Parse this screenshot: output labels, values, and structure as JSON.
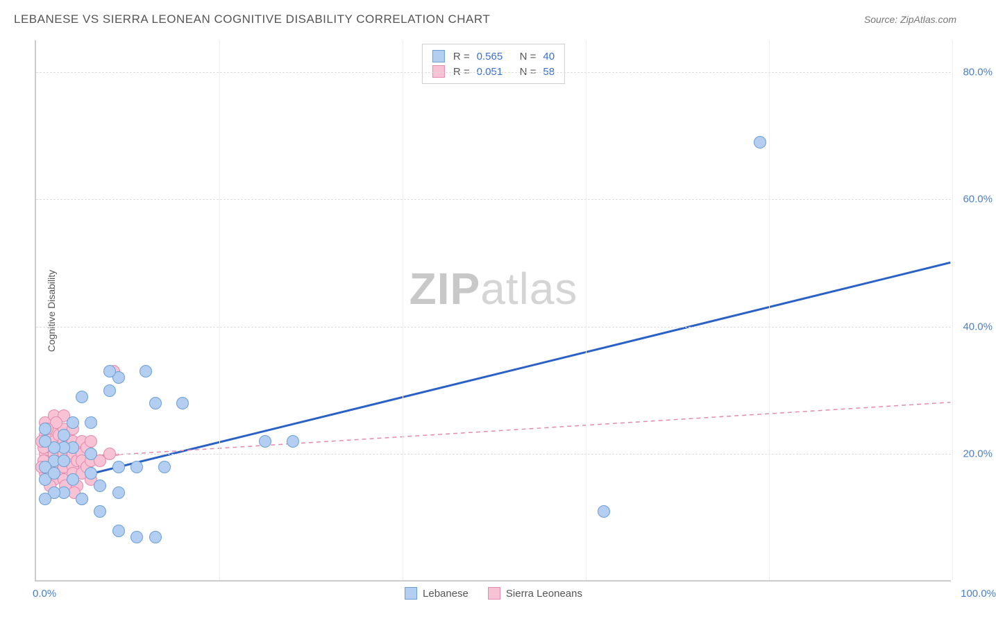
{
  "header": {
    "title": "LEBANESE VS SIERRA LEONEAN COGNITIVE DISABILITY CORRELATION CHART",
    "source_label": "Source: ",
    "source_name": "ZipAtlas.com"
  },
  "chart": {
    "type": "scatter",
    "ylabel": "Cognitive Disability",
    "xlim": [
      0,
      100
    ],
    "ylim": [
      0,
      85
    ],
    "yticks": [
      20,
      40,
      60,
      80
    ],
    "ytick_labels": [
      "20.0%",
      "40.0%",
      "60.0%",
      "80.0%"
    ],
    "xtick_labels": {
      "left": "0.0%",
      "right": "100.0%"
    },
    "grid_color": "#dddddd",
    "axis_color": "#cccccc",
    "background_color": "#ffffff",
    "xgrid_positions": [
      20,
      40,
      60,
      80,
      100
    ],
    "watermark": {
      "zip": "ZIP",
      "atlas": "atlas"
    },
    "series": [
      {
        "name": "Lebanese",
        "fill_color": "#b3cef0",
        "stroke_color": "#6a9fd4",
        "marker_radius": 9,
        "trend": {
          "x1": 1,
          "y1": 15,
          "x2": 100,
          "y2": 50,
          "color": "#2a61c7",
          "width": 3,
          "dash": "none",
          "solid_until_x": 100
        },
        "corr": {
          "r": "0.565",
          "n": "40"
        },
        "points": [
          [
            79,
            69
          ],
          [
            62,
            11
          ],
          [
            28,
            22
          ],
          [
            25,
            22
          ],
          [
            16,
            28
          ],
          [
            13,
            28
          ],
          [
            9,
            32
          ],
          [
            8,
            33
          ],
          [
            12,
            33
          ],
          [
            14,
            18
          ],
          [
            11,
            18
          ],
          [
            9,
            18
          ],
          [
            6,
            25
          ],
          [
            4,
            25
          ],
          [
            4,
            21
          ],
          [
            3,
            21
          ],
          [
            2,
            21
          ],
          [
            2,
            19
          ],
          [
            3,
            19
          ],
          [
            6,
            17
          ],
          [
            7,
            15
          ],
          [
            3,
            14
          ],
          [
            2,
            14
          ],
          [
            5,
            13
          ],
          [
            9,
            14
          ],
          [
            1,
            16
          ],
          [
            1,
            18
          ],
          [
            1,
            22
          ],
          [
            1,
            24
          ],
          [
            1,
            13
          ],
          [
            8,
            30
          ],
          [
            6,
            20
          ],
          [
            3,
            23
          ],
          [
            2,
            17
          ],
          [
            4,
            16
          ],
          [
            5,
            29
          ],
          [
            9,
            8
          ],
          [
            11,
            7
          ],
          [
            13,
            7
          ],
          [
            7,
            11
          ]
        ]
      },
      {
        "name": "Sierra Leoneans",
        "fill_color": "#f6c2d4",
        "stroke_color": "#e589af",
        "marker_radius": 9,
        "trend": {
          "x1": 0.5,
          "y1": 19,
          "x2": 100,
          "y2": 28,
          "color": "#e589af",
          "width": 2,
          "dash": "6 5",
          "solid_until_x": 9
        },
        "corr": {
          "r": "0.051",
          "n": "58"
        },
        "points": [
          [
            1,
            20
          ],
          [
            1.5,
            21
          ],
          [
            1,
            19
          ],
          [
            1,
            18
          ],
          [
            1,
            23
          ],
          [
            1,
            25
          ],
          [
            1,
            17
          ],
          [
            2,
            20
          ],
          [
            2,
            22
          ],
          [
            2,
            24
          ],
          [
            2,
            18
          ],
          [
            2,
            16
          ],
          [
            2,
            14
          ],
          [
            2,
            26
          ],
          [
            2.5,
            19
          ],
          [
            2.5,
            21
          ],
          [
            2.5,
            23
          ],
          [
            2.5,
            17
          ],
          [
            3,
            20
          ],
          [
            3,
            18
          ],
          [
            3,
            22
          ],
          [
            3,
            24
          ],
          [
            3,
            16
          ],
          [
            3,
            26
          ],
          [
            3.5,
            19
          ],
          [
            3.5,
            21
          ],
          [
            3.5,
            23
          ],
          [
            4,
            20
          ],
          [
            4,
            22
          ],
          [
            4,
            18
          ],
          [
            4,
            17
          ],
          [
            4,
            24
          ],
          [
            4.5,
            19
          ],
          [
            4.5,
            21
          ],
          [
            4.5,
            15
          ],
          [
            5,
            20
          ],
          [
            5,
            17
          ],
          [
            5,
            19
          ],
          [
            5,
            22
          ],
          [
            5,
            13
          ],
          [
            5.5,
            21
          ],
          [
            5.5,
            18
          ],
          [
            6,
            19
          ],
          [
            6,
            16
          ],
          [
            6,
            22
          ],
          [
            1.5,
            15
          ],
          [
            1.5,
            17
          ],
          [
            0.8,
            21
          ],
          [
            0.8,
            19
          ],
          [
            2.2,
            25
          ],
          [
            3.2,
            15
          ],
          [
            4.2,
            14
          ],
          [
            7,
            19
          ],
          [
            0.6,
            22
          ],
          [
            0.6,
            18
          ],
          [
            1.2,
            24
          ],
          [
            8,
            20
          ],
          [
            8.5,
            33
          ]
        ]
      }
    ],
    "corr_legend": {
      "r_label": "R  =",
      "n_label": "N  ="
    },
    "bottom_legend": {
      "items": [
        "Lebanese",
        "Sierra Leoneans"
      ]
    }
  }
}
